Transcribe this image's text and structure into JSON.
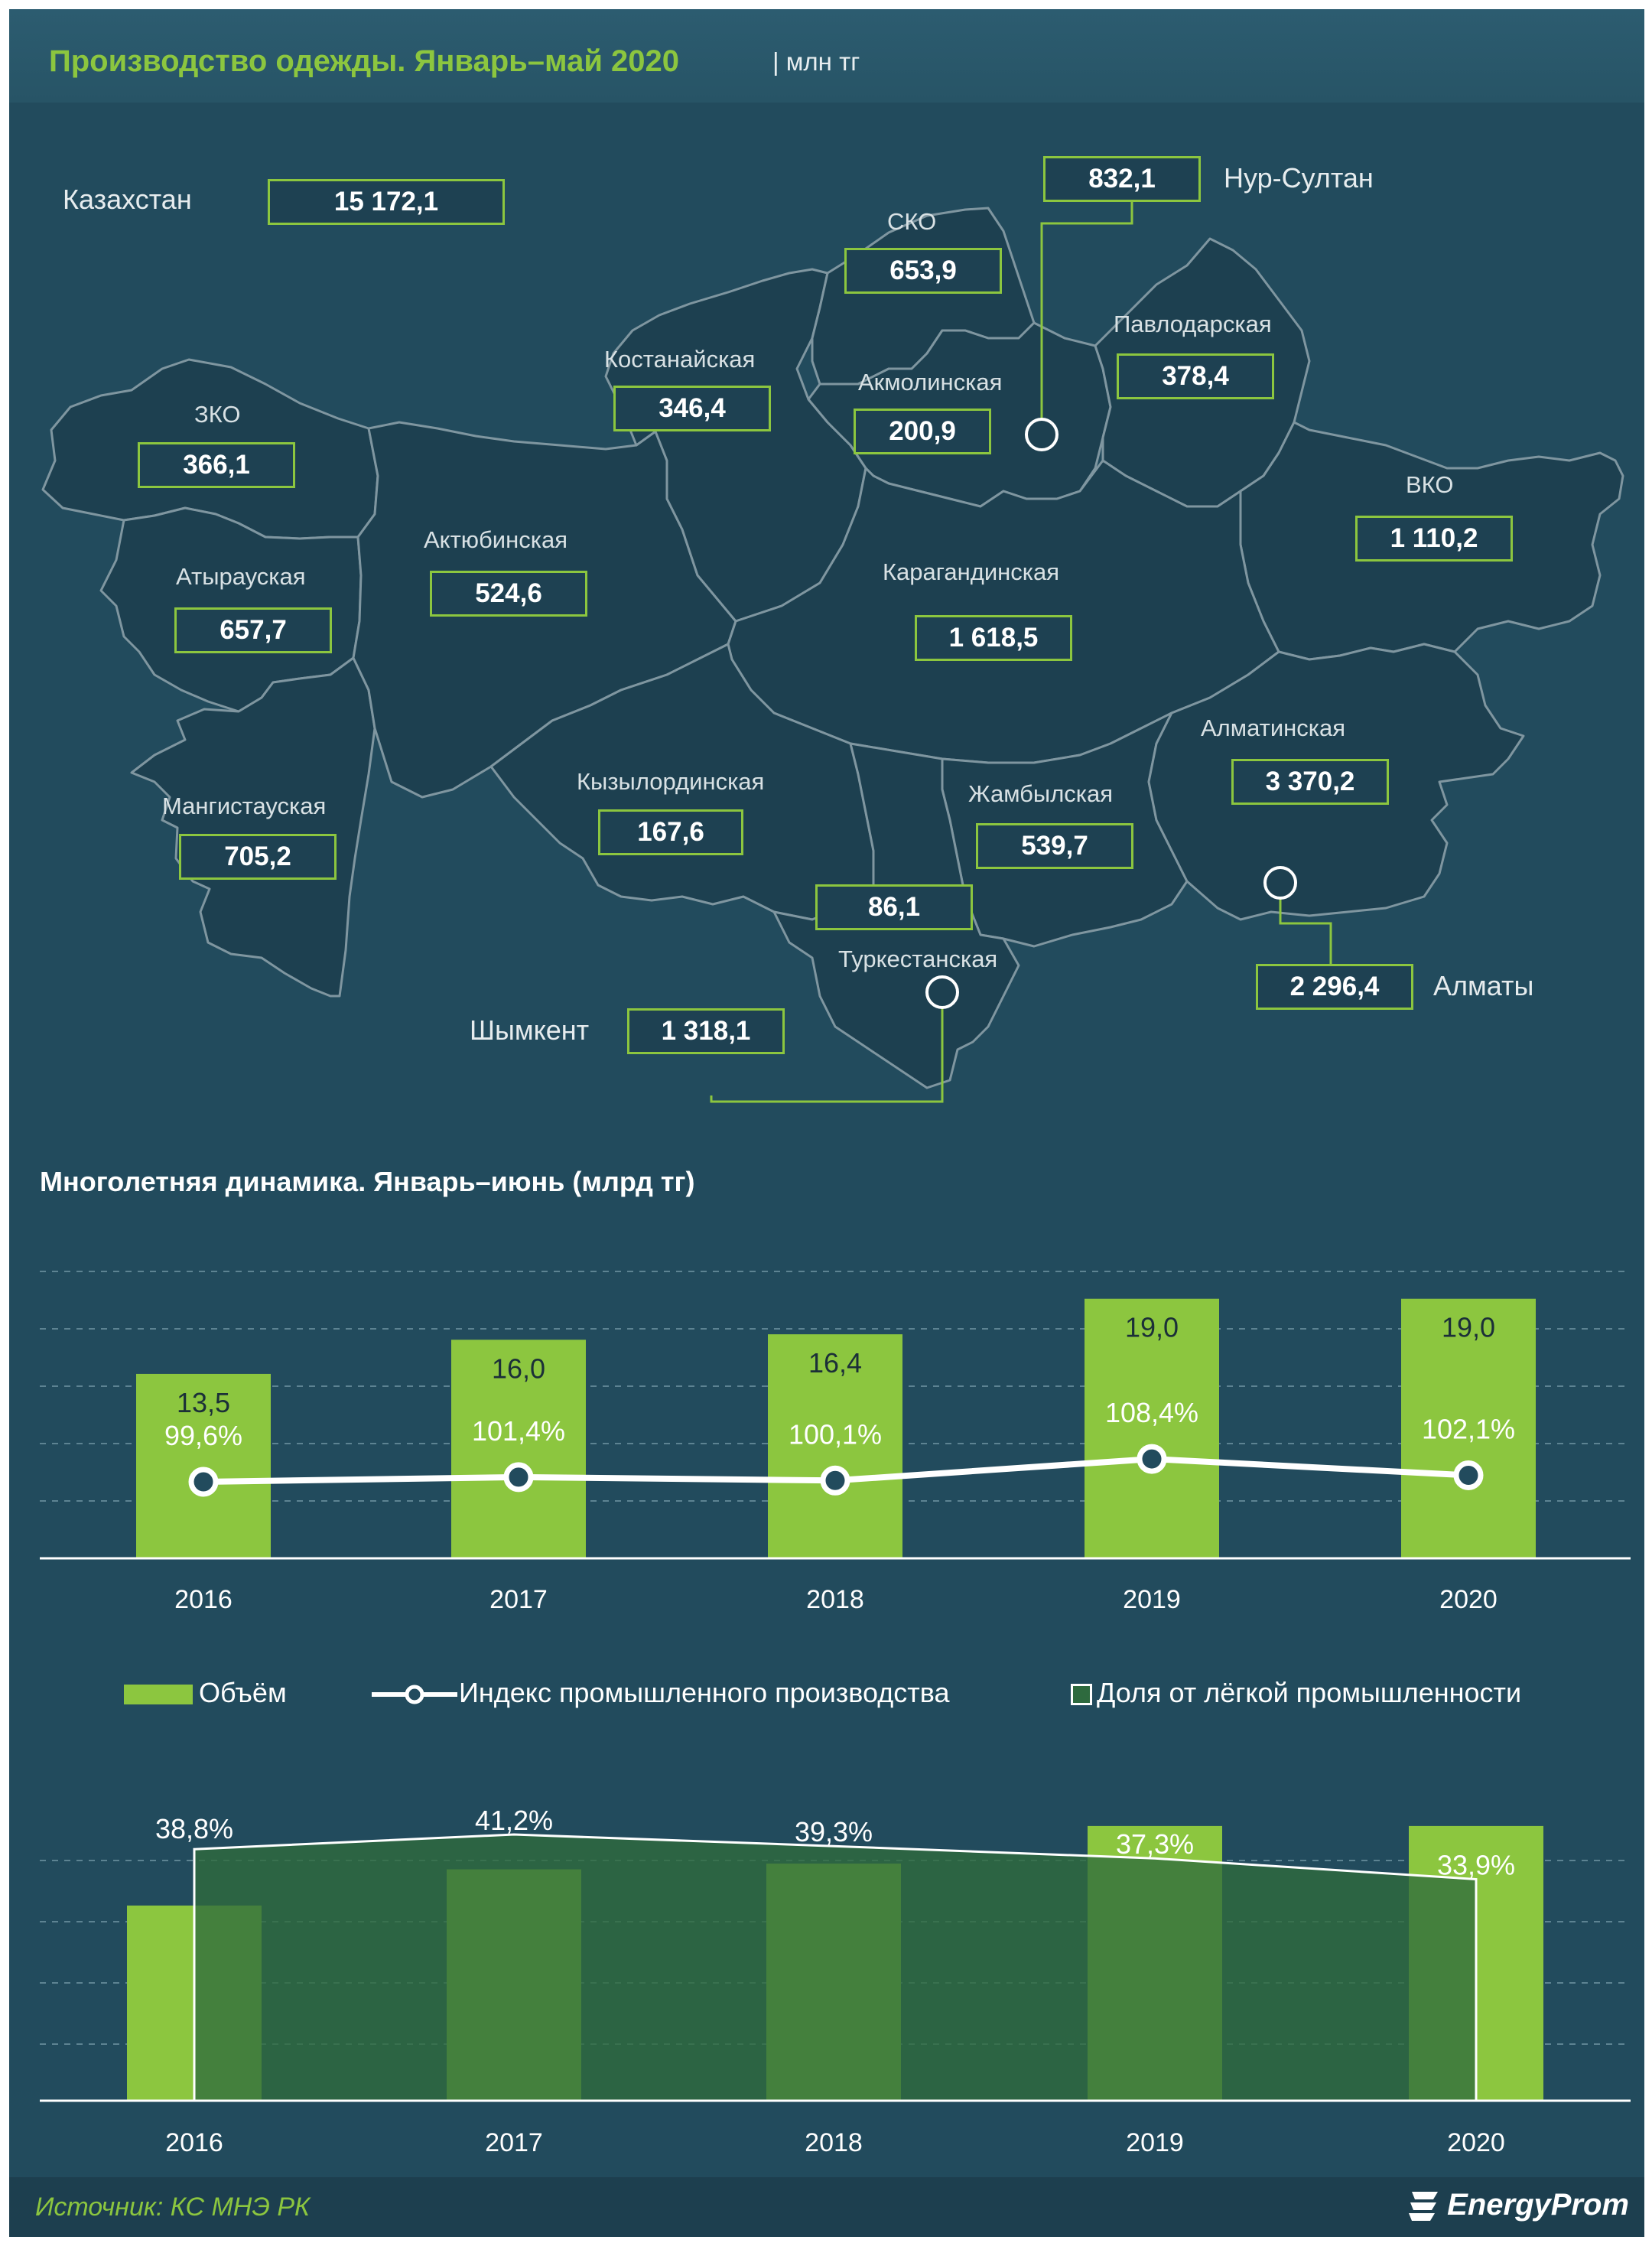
{
  "header": {
    "title": "Производство одежды. Январь–май 2020",
    "unit": "| млн тг"
  },
  "map": {
    "total": {
      "name": "Казахстан",
      "value": "15 172,1"
    },
    "regions": {
      "zko": {
        "name": "ЗКО",
        "value": "366,1"
      },
      "atyrau": {
        "name": "Атырауская",
        "value": "657,7"
      },
      "mangystau": {
        "name": "Мангистауская",
        "value": "705,2"
      },
      "aktobe": {
        "name": "Актюбинская",
        "value": "524,6"
      },
      "kostanay": {
        "name": "Костанайская",
        "value": "346,4"
      },
      "sko": {
        "name": "СКО",
        "value": "653,9"
      },
      "akmola": {
        "name": "Акмолинская",
        "value": "200,9"
      },
      "nursultan": {
        "name": "Нур-Султан",
        "value": "832,1"
      },
      "pavlodar": {
        "name": "Павлодарская",
        "value": "378,4"
      },
      "vko": {
        "name": "ВКО",
        "value": "1 110,2"
      },
      "karaganda": {
        "name": "Карагандинская",
        "value": "1 618,5"
      },
      "kyzylorda": {
        "name": "Кызылординская",
        "value": "167,6"
      },
      "zhambyl": {
        "name": "Жамбылская",
        "value": "539,7"
      },
      "almaty_obl": {
        "name": "Алматинская",
        "value": "3 370,2"
      },
      "turkestan": {
        "name": "Туркестанская",
        "value": "86,1"
      },
      "shymkent": {
        "name": "Шымкент",
        "value": "1 318,1"
      },
      "almaty": {
        "name": "Алматы",
        "value": "2 296,4"
      }
    }
  },
  "section2_title": "Многолетняя  динамика.  Январь–июнь  (млрд тг)",
  "legend": {
    "volume": "Объём",
    "index": "Индекс промышленного производства",
    "share": "Доля от лёгкой промышленности"
  },
  "colors": {
    "bar": "#8cc63f",
    "background": "#224b5d",
    "line": "#ffffff"
  },
  "chart_data": [
    {
      "type": "bar",
      "categories": [
        "2016",
        "2017",
        "2018",
        "2019",
        "2020"
      ],
      "series": [
        {
          "name": "Объём",
          "values": [
            13.5,
            16.0,
            16.4,
            19.0,
            19.0
          ],
          "labels": [
            "13,5",
            "16,0",
            "16,4",
            "19,0",
            "19,0"
          ]
        },
        {
          "name": "Индекс промышленного производства",
          "type": "line",
          "values": [
            99.6,
            101.4,
            100.1,
            108.4,
            102.1
          ],
          "labels": [
            "99,6%",
            "101,4%",
            "100,1%",
            "108,4%",
            "102,1%"
          ]
        }
      ],
      "grid": true
    },
    {
      "type": "area",
      "categories": [
        "2016",
        "2017",
        "2018",
        "2019",
        "2020"
      ],
      "series": [
        {
          "name": "Объём",
          "type": "bar",
          "values": [
            13.5,
            16.0,
            16.4,
            19.0,
            19.0
          ]
        },
        {
          "name": "Доля от лёгкой промышленности",
          "values": [
            38.8,
            41.2,
            39.3,
            37.3,
            33.9
          ],
          "labels": [
            "38,8%",
            "41,2%",
            "39,3%",
            "37,3%",
            "33,9%"
          ]
        }
      ],
      "grid": true
    }
  ],
  "footer": {
    "source": "Источник: КС МНЭ РК",
    "brand": "EnergyProm"
  }
}
